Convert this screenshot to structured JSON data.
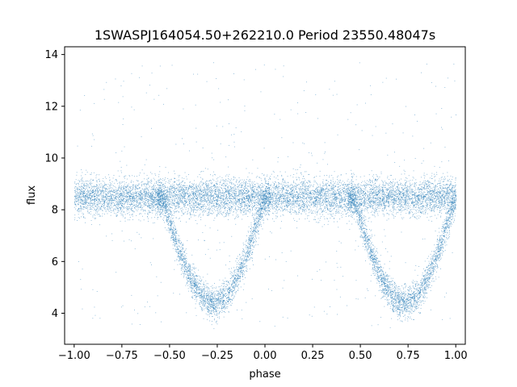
{
  "chart_data": {
    "type": "scatter",
    "title": "1SWASPJ164054.50+262210.0 Period 23550.48047s",
    "xlabel": "phase",
    "ylabel": "flux",
    "xlim": [
      -1.05,
      1.05
    ],
    "ylim": [
      2.8,
      14.3
    ],
    "x_ticks": [
      -1.0,
      -0.75,
      -0.5,
      -0.25,
      0.0,
      0.25,
      0.5,
      0.75,
      1.0
    ],
    "x_tick_labels": [
      "−1.00",
      "−0.75",
      "−0.50",
      "−0.25",
      "0.00",
      "0.25",
      "0.50",
      "0.75",
      "1.00"
    ],
    "y_ticks": [
      4,
      6,
      8,
      10,
      12,
      14
    ],
    "y_tick_labels": [
      "4",
      "6",
      "8",
      "10",
      "12",
      "14"
    ],
    "grid": false,
    "point_color": "#1f77b4",
    "series": [
      {
        "baseline_flux": 8.5,
        "baseline_scatter": 0.35,
        "eclipse_centers": [
          -0.27,
          0.73
        ],
        "eclipse_min_flux": 4.4,
        "eclipse_half_width": 0.27,
        "phase_range": [
          -1.0,
          1.0
        ],
        "outlier_range": [
          3.4,
          13.7
        ]
      }
    ]
  }
}
